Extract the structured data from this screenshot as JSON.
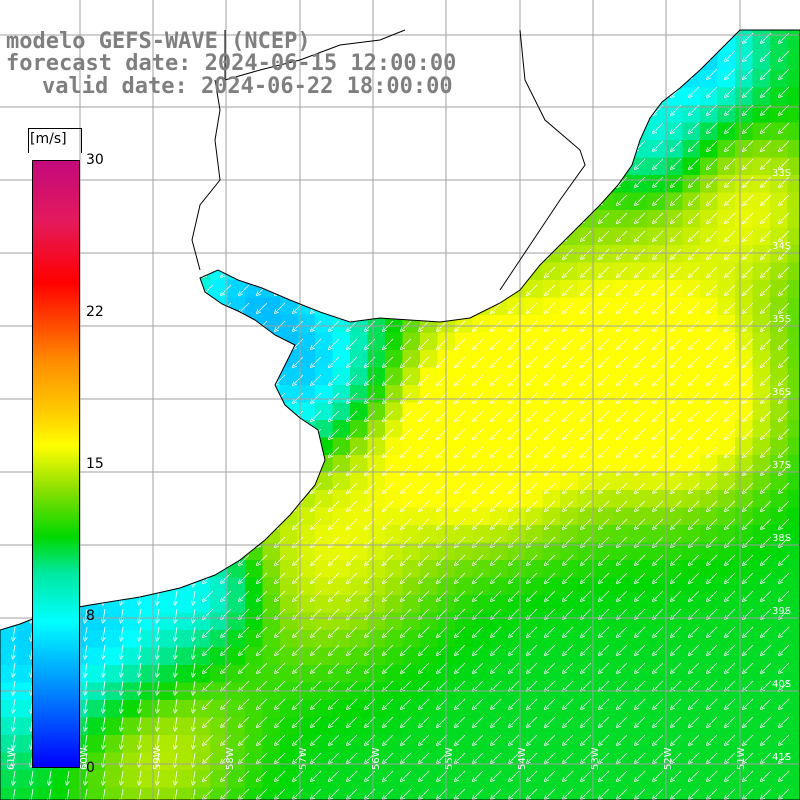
{
  "header": {
    "model": "modelo GEFS-WAVE (NCEP)",
    "forecast": "forecast date: 2024-06-15 12:00:00",
    "valid": "valid date: 2024-06-22 18:00:00"
  },
  "legend": {
    "unit": "[m/s]",
    "ticks": [
      {
        "label": "30",
        "value": 30
      },
      {
        "label": "22",
        "value": 22
      },
      {
        "label": "15",
        "value": 15
      },
      {
        "label": "8",
        "value": 8
      },
      {
        "label": "0",
        "value": 0
      }
    ]
  },
  "grid": {
    "lat_labels": [
      "33S",
      "34S",
      "35S",
      "36S",
      "37S",
      "38S",
      "39S",
      "40S",
      "41S"
    ],
    "lon_labels": [
      "61W",
      "60W",
      "59W",
      "58W",
      "57W",
      "56W",
      "55W",
      "54W",
      "53W",
      "52W",
      "51W"
    ]
  },
  "colors": {
    "land": "#ffffff",
    "grid": "#a0a0a0",
    "coast": "#000000",
    "header_text": "#7f7f7f",
    "arrow": "#ffffff",
    "scale_0": "#0000ff",
    "scale_8": "#00ffff",
    "scale_15": "#ffff00",
    "scale_22": "#ff8c00",
    "scale_30": "#c3097c"
  }
}
